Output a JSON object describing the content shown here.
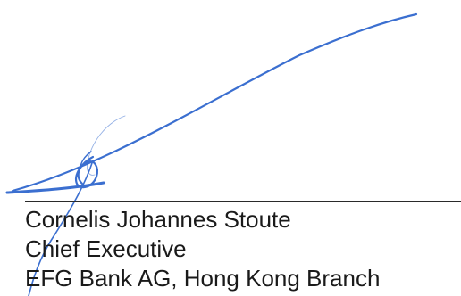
{
  "signature": {
    "name": "Cornelis Johannes Stoute",
    "title": "Chief Executive",
    "organization": "EFG Bank AG, Hong Kong Branch"
  },
  "colors": {
    "ink_blue": "#3b6fd0",
    "text": "#1a1a1a",
    "rule": "#2a2a2a"
  }
}
